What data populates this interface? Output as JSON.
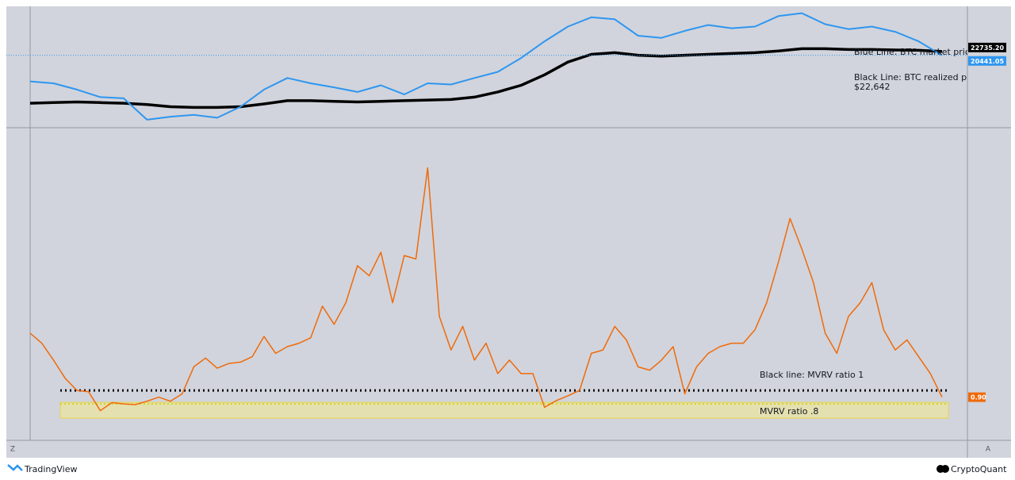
{
  "chart_data": [
    {
      "type": "line",
      "scale": "log",
      "ylim": [
        3000,
        75000
      ],
      "series": [
        {
          "name": "BTC realized price",
          "color": "#000000",
          "values": [
            5500,
            5600,
            5700,
            5600,
            5500,
            5300,
            5000,
            4900,
            4900,
            5000,
            5400,
            5900,
            5900,
            5800,
            5700,
            5800,
            5900,
            6000,
            6100,
            6500,
            7500,
            9000,
            12000,
            17000,
            21000,
            22000,
            20500,
            20000,
            20500,
            21000,
            21500,
            22000,
            23000,
            24500,
            24500,
            24000,
            24000,
            23700,
            23500,
            22735.2
          ],
          "value_labels": [
            null,
            null,
            null,
            null,
            null,
            null,
            null,
            null,
            null,
            null,
            null,
            null,
            null,
            null,
            null,
            null,
            null,
            null,
            null,
            null,
            null,
            null,
            null,
            null,
            null,
            null,
            null,
            null,
            null,
            null,
            null,
            null,
            null,
            null,
            null,
            null,
            null,
            null,
            null,
            "22735.20"
          ]
        },
        {
          "name": "BTC market price",
          "color": "#2e96f0",
          "values": [
            10000,
            9500,
            8000,
            6500,
            6300,
            3500,
            3800,
            4000,
            3700,
            5000,
            8000,
            11000,
            9500,
            8500,
            7500,
            9000,
            7000,
            9500,
            9200,
            11000,
            13000,
            19000,
            30000,
            45000,
            58000,
            55000,
            35000,
            33000,
            40000,
            47000,
            43000,
            45000,
            60000,
            65000,
            48000,
            42000,
            45000,
            39000,
            30000,
            20441.05
          ],
          "value_labels": [
            null,
            null,
            null,
            null,
            null,
            null,
            null,
            null,
            null,
            null,
            null,
            null,
            null,
            null,
            null,
            null,
            null,
            null,
            null,
            null,
            null,
            null,
            null,
            null,
            null,
            null,
            null,
            null,
            null,
            null,
            null,
            null,
            null,
            null,
            null,
            null,
            null,
            null,
            null,
            "20441.05"
          ]
        }
      ],
      "annotations": [
        "Blue Line: BTC market price",
        "Black Line: BTC realized price",
        "$22,642"
      ]
    },
    {
      "type": "line",
      "ylim": [
        0.46,
        4.79
      ],
      "series": [
        {
          "name": "MVRV ratio",
          "color": "#f06a0a",
          "values": [
            1.85,
            1.7,
            1.45,
            1.18,
            1.0,
            0.98,
            0.7,
            0.82,
            0.8,
            0.79,
            0.84,
            0.9,
            0.84,
            0.95,
            1.35,
            1.48,
            1.33,
            1.4,
            1.42,
            1.5,
            1.8,
            1.55,
            1.65,
            1.7,
            1.78,
            2.25,
            1.98,
            2.3,
            2.85,
            2.7,
            3.05,
            2.3,
            3.0,
            2.95,
            4.3,
            2.1,
            1.6,
            1.95,
            1.45,
            1.7,
            1.25,
            1.45,
            1.25,
            1.25,
            0.75,
            0.85,
            0.92,
            1.0,
            1.55,
            1.6,
            1.95,
            1.75,
            1.35,
            1.3,
            1.45,
            1.65,
            0.95,
            1.35,
            1.55,
            1.65,
            1.7,
            1.7,
            1.9,
            2.3,
            2.9,
            3.55,
            3.1,
            2.6,
            1.85,
            1.55,
            2.1,
            2.3,
            2.6,
            1.9,
            1.6,
            1.75,
            1.5,
            1.25,
            0.9
          ],
          "value_labels": [
            null,
            null,
            null,
            null,
            null,
            null,
            null,
            null,
            null,
            null,
            null,
            null,
            null,
            null,
            null,
            null,
            null,
            null,
            null,
            null,
            null,
            null,
            null,
            null,
            null,
            null,
            null,
            null,
            null,
            null,
            null,
            null,
            null,
            null,
            null,
            null,
            null,
            null,
            null,
            null,
            null,
            null,
            null,
            null,
            null,
            null,
            null,
            null,
            null,
            null,
            null,
            null,
            null,
            null,
            null,
            null,
            null,
            null,
            null,
            null,
            null,
            null,
            null,
            null,
            null,
            null,
            null,
            null,
            null,
            null,
            null,
            null,
            null,
            null,
            null,
            null,
            null,
            null,
            "0.90"
          ]
        }
      ],
      "reference_lines": [
        {
          "value": 1,
          "label": "Black line: MVRV ratio 1",
          "color": "#000000"
        },
        {
          "value": 0.8,
          "label": "MVRV ratio .8",
          "color": "#c8d400"
        }
      ]
    }
  ],
  "corner_labels": [
    "Z",
    "A"
  ],
  "branding": {
    "left": "TradingView",
    "right": "CryptoQuant"
  }
}
